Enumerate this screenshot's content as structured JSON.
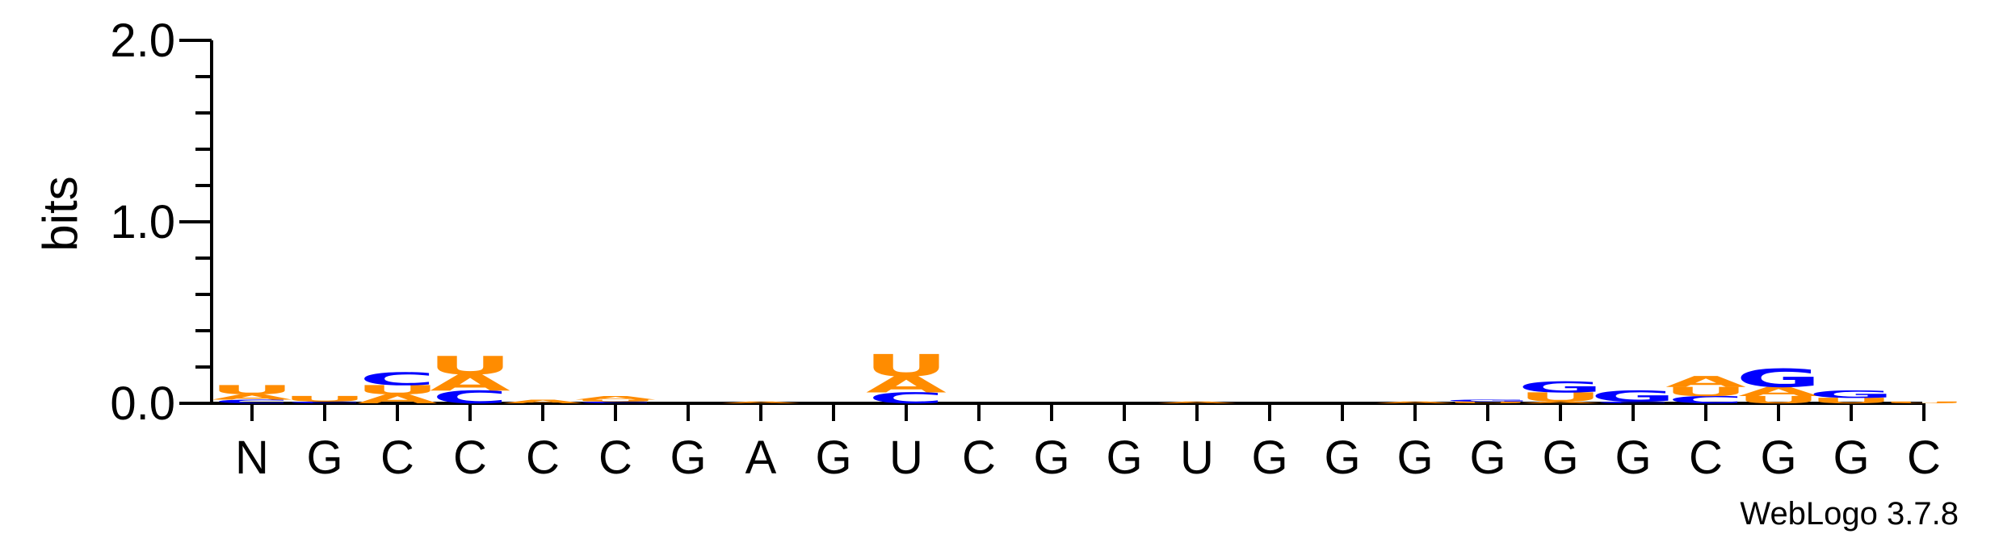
{
  "colors": {
    "A": "#ff8c00",
    "U": "#ff8c00",
    "C": "#0000ff",
    "G": "#0000ff",
    "axis": "#000000",
    "background": "#ffffff"
  },
  "footer": "WebLogo 3.7.8",
  "chart_data": {
    "type": "sequence-logo",
    "title": "",
    "xlabel": "",
    "ylabel": "bits",
    "ylim": [
      0,
      2.0
    ],
    "yticks": [
      "0.0",
      "1.0",
      "2.0"
    ],
    "grid": false,
    "legend": "none",
    "positions": [
      {
        "label": "N",
        "stack": [
          {
            "letter": "C",
            "bits": 0.02
          },
          {
            "letter": "A",
            "bits": 0.03
          },
          {
            "letter": "U",
            "bits": 0.05
          }
        ]
      },
      {
        "label": "G",
        "stack": [
          {
            "letter": "C",
            "bits": 0.01
          },
          {
            "letter": "U",
            "bits": 0.03
          }
        ]
      },
      {
        "label": "C",
        "stack": [
          {
            "letter": "A",
            "bits": 0.05
          },
          {
            "letter": "U",
            "bits": 0.05
          },
          {
            "letter": "C",
            "bits": 0.07
          }
        ]
      },
      {
        "label": "C",
        "stack": [
          {
            "letter": "C",
            "bits": 0.07
          },
          {
            "letter": "A",
            "bits": 0.09
          },
          {
            "letter": "U",
            "bits": 0.1
          }
        ]
      },
      {
        "label": "C",
        "stack": [
          {
            "letter": "A",
            "bits": 0.02
          }
        ]
      },
      {
        "label": "C",
        "stack": [
          {
            "letter": "C",
            "bits": 0.01
          },
          {
            "letter": "U",
            "bits": 0.01
          },
          {
            "letter": "A",
            "bits": 0.02
          }
        ]
      },
      {
        "label": "G",
        "stack": []
      },
      {
        "label": "A",
        "stack": [
          {
            "letter": "A",
            "bits": 0.01
          }
        ]
      },
      {
        "label": "G",
        "stack": []
      },
      {
        "label": "U",
        "stack": [
          {
            "letter": "C",
            "bits": 0.06
          },
          {
            "letter": "A",
            "bits": 0.09
          },
          {
            "letter": "U",
            "bits": 0.12
          }
        ]
      },
      {
        "label": "C",
        "stack": []
      },
      {
        "label": "G",
        "stack": []
      },
      {
        "label": "G",
        "stack": []
      },
      {
        "label": "U",
        "stack": [
          {
            "letter": "A",
            "bits": 0.01
          }
        ]
      },
      {
        "label": "G",
        "stack": []
      },
      {
        "label": "G",
        "stack": []
      },
      {
        "label": "G",
        "stack": [
          {
            "letter": "A",
            "bits": 0.01
          }
        ]
      },
      {
        "label": "G",
        "stack": [
          {
            "letter": "U",
            "bits": 0.01
          },
          {
            "letter": "G",
            "bits": 0.01
          }
        ]
      },
      {
        "label": "G",
        "stack": [
          {
            "letter": "A",
            "bits": 0.01
          },
          {
            "letter": "U",
            "bits": 0.05
          },
          {
            "letter": "G",
            "bits": 0.06
          }
        ]
      },
      {
        "label": "G",
        "stack": [
          {
            "letter": "C",
            "bits": 0.01
          },
          {
            "letter": "G",
            "bits": 0.06
          }
        ]
      },
      {
        "label": "C",
        "stack": [
          {
            "letter": "C",
            "bits": 0.04
          },
          {
            "letter": "U",
            "bits": 0.05
          },
          {
            "letter": "A",
            "bits": 0.06
          }
        ]
      },
      {
        "label": "G",
        "stack": [
          {
            "letter": "U",
            "bits": 0.04
          },
          {
            "letter": "A",
            "bits": 0.05
          },
          {
            "letter": "G",
            "bits": 0.1
          }
        ]
      },
      {
        "label": "G",
        "stack": [
          {
            "letter": "U",
            "bits": 0.03
          },
          {
            "letter": "G",
            "bits": 0.04
          }
        ]
      },
      {
        "label": "C",
        "stack": [
          {
            "letter": "U",
            "bits": 0.01
          }
        ]
      }
    ]
  }
}
